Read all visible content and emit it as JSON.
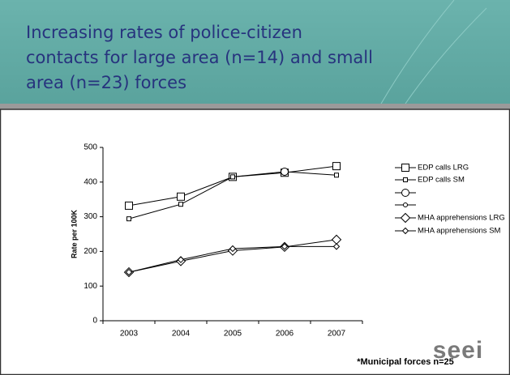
{
  "title_lines": [
    "Increasing rates of police-citizen",
    "contacts for large area (n=14) and small",
    "area (n=23) forces"
  ],
  "logo": "seei",
  "footnote": "*Municipal forces n=25",
  "chart_data": {
    "type": "line",
    "categories": [
      "2003",
      "2004",
      "2005",
      "2006",
      "2007"
    ],
    "y_label": "Rate per 100K",
    "ylim": [
      0,
      500
    ],
    "yticks": [
      0,
      100,
      200,
      300,
      400,
      500
    ],
    "color": "#000000",
    "series": [
      {
        "name": "EDP calls LRG",
        "marker": "square",
        "size": 9,
        "values": [
          332,
          358,
          415,
          427,
          446
        ]
      },
      {
        "name": "EDP calls SM",
        "marker": "square",
        "size": 5,
        "values": [
          294,
          336,
          415,
          430,
          420
        ]
      },
      {
        "marker": "circle",
        "size": 9,
        "values": [
          null,
          null,
          null,
          430,
          null
        ]
      },
      {
        "marker": "circle",
        "size": 5,
        "values": [
          null,
          null,
          null,
          null,
          null
        ]
      },
      {
        "name": "MHA apprehensions LRG",
        "marker": "diamond",
        "size": 9,
        "values": [
          140,
          172,
          202,
          213,
          234
        ]
      },
      {
        "name": "MHA apprehensions SM",
        "marker": "diamond",
        "size": 5,
        "values": [
          140,
          176,
          208,
          214,
          214
        ]
      }
    ]
  }
}
